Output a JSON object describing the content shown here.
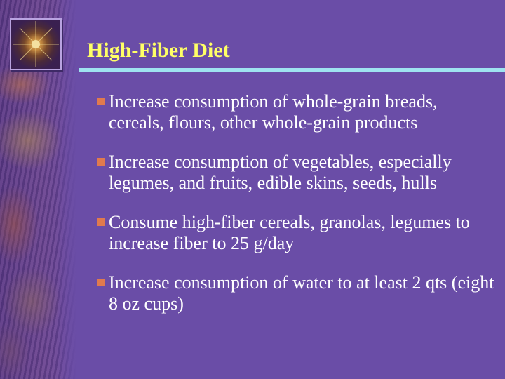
{
  "slide": {
    "title": "High-Fiber Diet",
    "bullets": [
      {
        "text": "Increase consumption of whole-grain breads, cereals, flours, other whole-grain products"
      },
      {
        "text": "Increase consumption of vegetables, especially legumes, and fruits, edible skins, seeds, hulls"
      },
      {
        "text": "Consume high-fiber cereals, granolas, legumes to increase  fiber to 25 g/day"
      },
      {
        "text": "Increase consumption of water to at least 2 qts (eight 8 oz cups)"
      }
    ]
  },
  "colors": {
    "background": "#6a4da7",
    "title": "#ffff66",
    "rule": "#9fe3f0",
    "bullet_marker": "#e07a4e",
    "body_text": "#ffffff"
  },
  "icons": {
    "logo": "decorative-emblem-icon",
    "bullet": "square-bullet-icon"
  }
}
